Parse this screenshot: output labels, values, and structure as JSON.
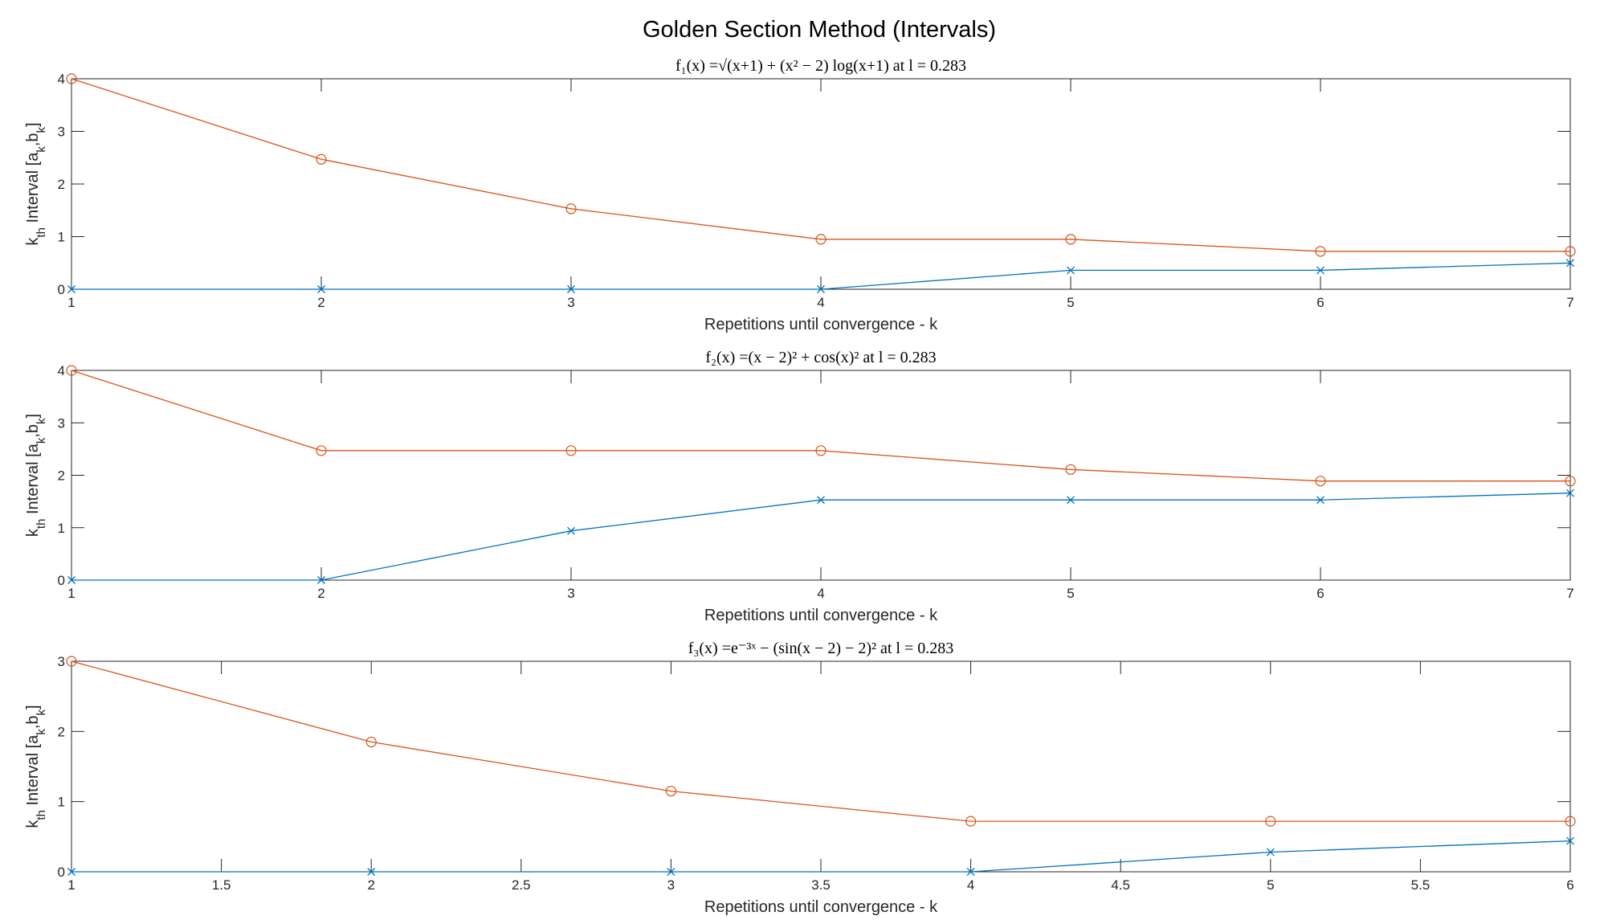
{
  "figure": {
    "title": "Golden Section Method (Intervals)"
  },
  "colors": {
    "a_series": "#0072BD",
    "b_series": "#D95319",
    "axes": "#262626"
  },
  "chart_data": [
    {
      "type": "line",
      "title": "f₁(x) =√(x+1) + (x² − 2) log(x+1) at l = 0.283",
      "xlabel": "Repetitions until convergence - k",
      "ylabel": "k_th Interval [a_k,b_k]",
      "xlim": [
        1,
        7
      ],
      "ylim": [
        0,
        4
      ],
      "xticks": [
        "1",
        "2",
        "3",
        "4",
        "5",
        "6",
        "7"
      ],
      "yticks": [
        "0",
        "1",
        "2",
        "3",
        "4"
      ],
      "grid": false,
      "x": [
        1,
        2,
        3,
        4,
        5,
        6,
        7
      ],
      "series": [
        {
          "marker": "x",
          "color": "#0072BD",
          "values": [
            0,
            0,
            0,
            0,
            0.36,
            0.36,
            0.5
          ]
        },
        {
          "marker": "o",
          "color": "#D95319",
          "values": [
            4,
            2.47,
            1.53,
            0.95,
            0.95,
            0.72,
            0.72
          ]
        }
      ]
    },
    {
      "type": "line",
      "title": "f₂(x) =(x − 2)² + cos(x)² at l = 0.283",
      "xlabel": "Repetitions until convergence - k",
      "ylabel": "k_th Interval [a_k,b_k]",
      "xlim": [
        1,
        7
      ],
      "ylim": [
        0,
        4
      ],
      "xticks": [
        "1",
        "2",
        "3",
        "4",
        "5",
        "6",
        "7"
      ],
      "yticks": [
        "0",
        "1",
        "2",
        "3",
        "4"
      ],
      "grid": false,
      "x": [
        1,
        2,
        3,
        4,
        5,
        6,
        7
      ],
      "series": [
        {
          "marker": "x",
          "color": "#0072BD",
          "values": [
            0,
            0,
            0.94,
            1.53,
            1.53,
            1.53,
            1.66
          ]
        },
        {
          "marker": "o",
          "color": "#D95319",
          "values": [
            4,
            2.47,
            2.47,
            2.47,
            2.11,
            1.89,
            1.89
          ]
        }
      ]
    },
    {
      "type": "line",
      "title": "f₃(x) =e⁻³ˣ − (sin(x − 2) − 2)² at l = 0.283",
      "xlabel": "Repetitions until convergence - k",
      "ylabel": "k_th Interval [a_k,b_k]",
      "xlim": [
        1,
        6
      ],
      "ylim": [
        0,
        3
      ],
      "xticks": [
        "1",
        "1.5",
        "2",
        "2.5",
        "3",
        "3.5",
        "4",
        "4.5",
        "5",
        "5.5",
        "6"
      ],
      "yticks": [
        "0",
        "1",
        "2",
        "3"
      ],
      "grid": false,
      "x": [
        1,
        2,
        3,
        4,
        5,
        6
      ],
      "series": [
        {
          "marker": "x",
          "color": "#0072BD",
          "values": [
            0,
            0,
            0,
            0,
            0.28,
            0.44
          ]
        },
        {
          "marker": "o",
          "color": "#D95319",
          "values": [
            3,
            1.85,
            1.15,
            0.72,
            0.72,
            0.72
          ]
        }
      ]
    }
  ]
}
